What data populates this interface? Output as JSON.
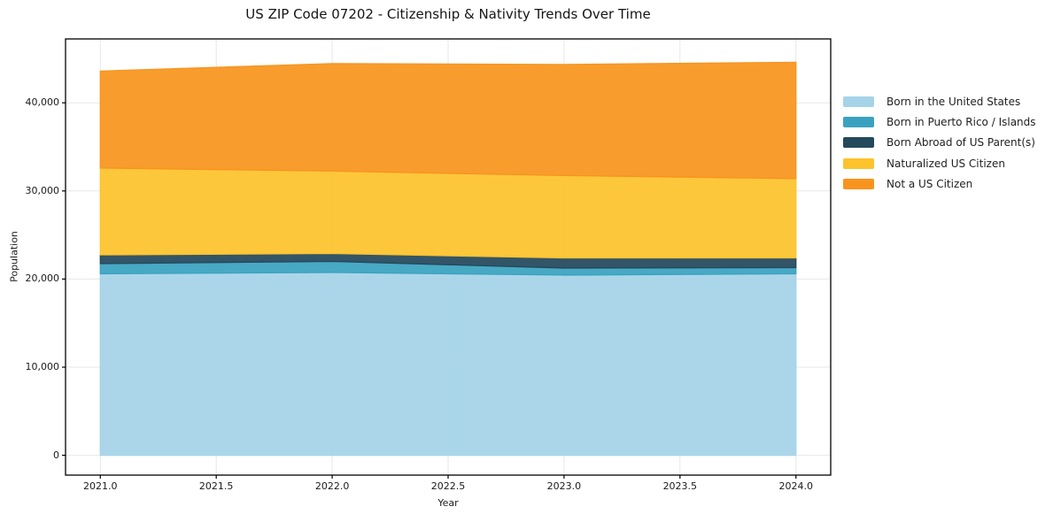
{
  "chart_data": {
    "type": "area",
    "stacked": true,
    "title": "US ZIP Code 07202 - Citizenship & Nativity Trends Over Time",
    "xlabel": "Year",
    "ylabel": "Population",
    "x": [
      2021,
      2022,
      2023,
      2024
    ],
    "series": [
      {
        "name": "Born in the United States",
        "color": "#A5D3E8",
        "values": [
          20600,
          20750,
          20450,
          20600
        ]
      },
      {
        "name": "Born in Puerto Rico / Islands",
        "color": "#3AA2C0",
        "values": [
          1150,
          1250,
          800,
          700
        ]
      },
      {
        "name": "Born Abroad of US Parent(s)",
        "color": "#24485C",
        "values": [
          1000,
          900,
          1150,
          1100
        ]
      },
      {
        "name": "Naturalized US Citizen",
        "color": "#FDC32C",
        "values": [
          9850,
          9350,
          9350,
          9000
        ]
      },
      {
        "name": "Not a US Citizen",
        "color": "#F8941E",
        "values": [
          11000,
          12200,
          12600,
          13200
        ]
      }
    ],
    "xlim": [
      2020.85,
      2024.15
    ],
    "ylim": [
      -2250,
      47250
    ],
    "x_ticks": {
      "values": [
        2021.0,
        2021.5,
        2022.0,
        2022.5,
        2023.0,
        2023.5,
        2024.0
      ],
      "labels": [
        "2021.0",
        "2021.5",
        "2022.0",
        "2022.5",
        "2023.0",
        "2023.5",
        "2024.0"
      ]
    },
    "y_ticks": {
      "values": [
        0,
        10000,
        20000,
        30000,
        40000
      ],
      "labels": [
        "0",
        "10,000",
        "20,000",
        "30,000",
        "40,000"
      ]
    },
    "grid": true,
    "legend_position": "right",
    "colors": {
      "grid": "#e7e7e7",
      "spine": "#000000",
      "tick": "#000000",
      "background": "#ffffff"
    }
  }
}
